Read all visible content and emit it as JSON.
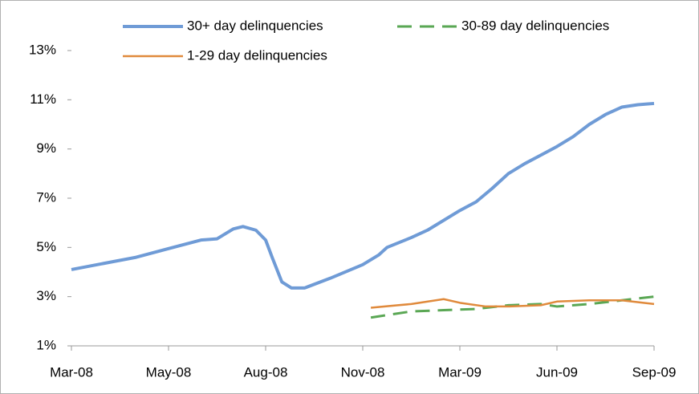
{
  "chart_data": {
    "type": "line",
    "xlim": [
      0,
      18
    ],
    "xticks": [
      {
        "value": 0,
        "label": "Mar-08"
      },
      {
        "value": 3,
        "label": "May-08"
      },
      {
        "value": 6,
        "label": "Aug-08"
      },
      {
        "value": 9,
        "label": "Nov-08"
      },
      {
        "value": 12,
        "label": "Mar-09"
      },
      {
        "value": 15,
        "label": "Jun-09"
      },
      {
        "value": 18,
        "label": "Sep-09"
      }
    ],
    "ylim": [
      1,
      13
    ],
    "yticks": [
      {
        "value": 1,
        "label": "1%"
      },
      {
        "value": 3,
        "label": "3%"
      },
      {
        "value": 5,
        "label": "5%"
      },
      {
        "value": 7,
        "label": "7%"
      },
      {
        "value": 9,
        "label": "9%"
      },
      {
        "value": 11,
        "label": "11%"
      },
      {
        "value": 13,
        "label": "13%"
      }
    ],
    "grid": false,
    "legend": "top",
    "series": [
      {
        "name": "30+ day delinquencies",
        "color": "#6f9bd6",
        "dash": false,
        "width": 4,
        "x": [
          0,
          1,
          2,
          3,
          4,
          4.5,
          5,
          5.3,
          5.7,
          6,
          6.2,
          6.5,
          6.8,
          7.2,
          8,
          9,
          9.5,
          9.75,
          10.5,
          11,
          12,
          12.5,
          13,
          13.5,
          14,
          14.5,
          15,
          15.5,
          16,
          16.5,
          17,
          17.5,
          18
        ],
        "values": [
          4.1,
          4.35,
          4.6,
          4.95,
          5.3,
          5.35,
          5.75,
          5.85,
          5.7,
          5.3,
          4.6,
          3.6,
          3.35,
          3.35,
          3.75,
          4.3,
          4.7,
          5.0,
          5.4,
          5.7,
          6.5,
          6.85,
          7.4,
          8.0,
          8.4,
          8.75,
          9.1,
          9.5,
          10.0,
          10.4,
          10.7,
          10.8,
          10.85
        ]
      },
      {
        "name": "30-89 day delinquencies",
        "color": "#5aa754",
        "dash": true,
        "width": 3,
        "x": [
          9.25,
          10.5,
          11.5,
          12.5,
          13.5,
          14.5,
          15,
          16,
          17,
          18
        ],
        "values": [
          2.15,
          2.4,
          2.45,
          2.5,
          2.65,
          2.7,
          2.6,
          2.7,
          2.85,
          3.0
        ]
      },
      {
        "name": "1-29 day delinquencies",
        "color": "#e08a3c",
        "dash": false,
        "width": 2.5,
        "x": [
          9.25,
          10.5,
          11.5,
          12,
          12.8,
          13.5,
          14.5,
          15,
          16,
          17,
          18
        ],
        "values": [
          2.55,
          2.7,
          2.9,
          2.75,
          2.6,
          2.6,
          2.65,
          2.8,
          2.85,
          2.85,
          2.7
        ]
      }
    ]
  }
}
